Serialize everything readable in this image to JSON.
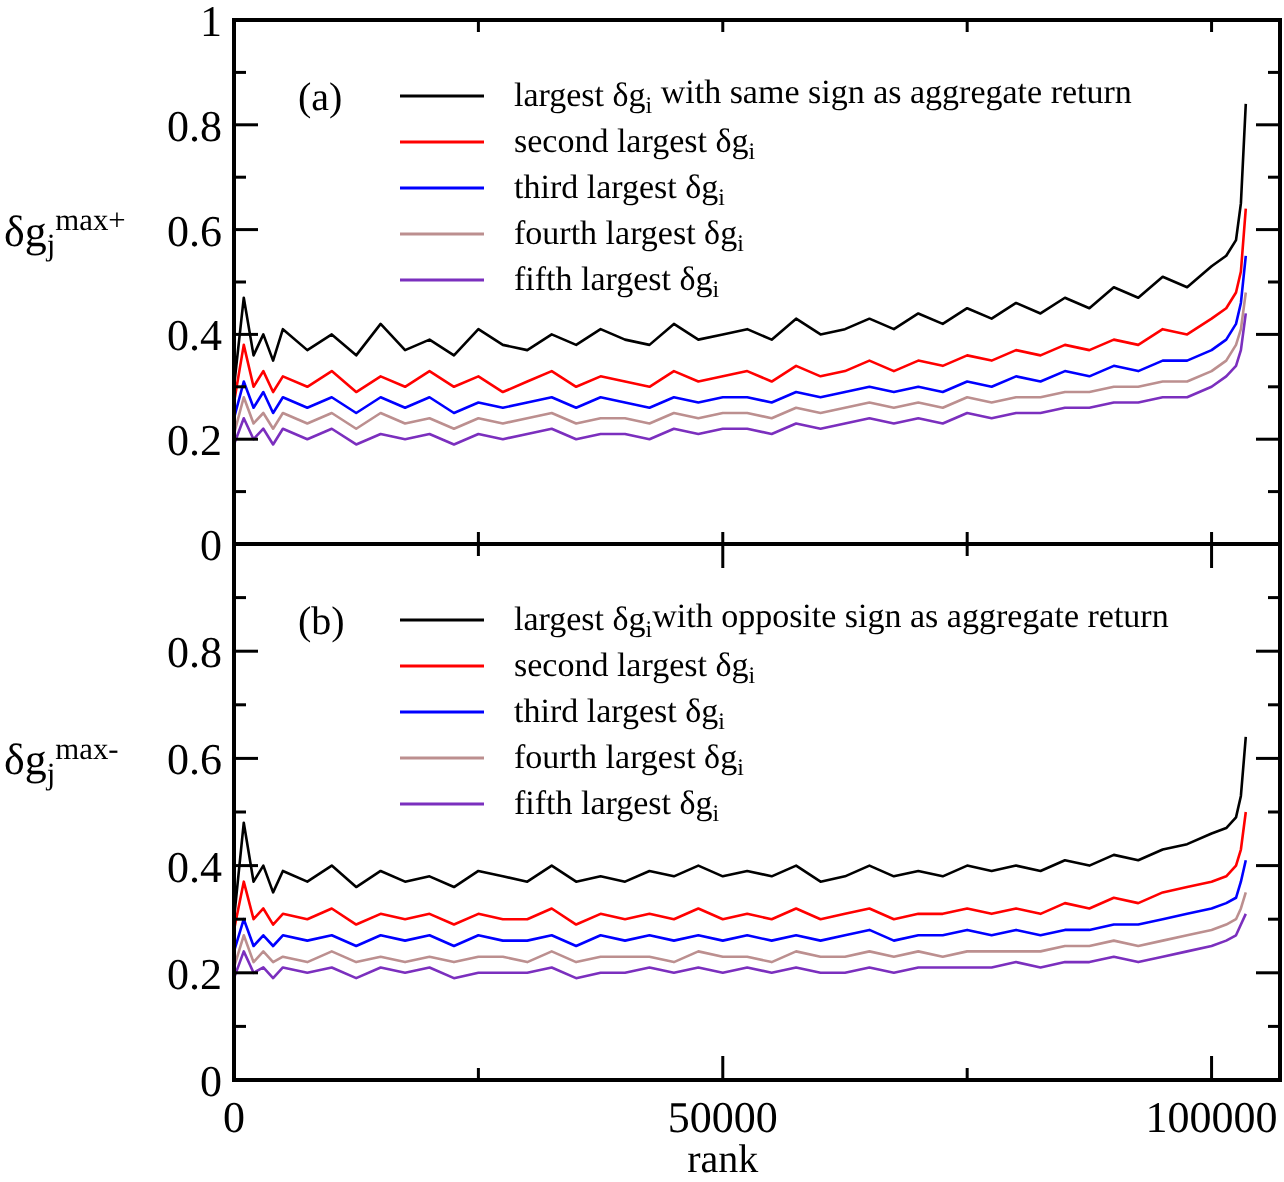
{
  "chart_data": [
    {
      "type": "line",
      "ylabel": "δg$_{j}$$^{max+}$",
      "annotations": [
        "(a)"
      ],
      "legend": "top",
      "tick_labels": "y",
      "xlim": [
        0,
        107000
      ],
      "ylim": [
        0,
        1
      ],
      "xticks": [
        {
          "value": 0,
          "label": null
        },
        {
          "value": 25000,
          "label": null
        },
        {
          "value": 50000,
          "label": null
        },
        {
          "value": 75000,
          "label": null
        },
        {
          "value": 100000,
          "label": null
        }
      ],
      "yticks": [
        0,
        {
          "value": 0.1,
          "label": null
        },
        0.2,
        {
          "value": 0.3,
          "label": null
        },
        0.4,
        {
          "value": 0.5,
          "label": null
        },
        0.6,
        {
          "value": 0.7,
          "label": null
        },
        0.8,
        {
          "value": 0.9,
          "label": null
        },
        1
      ],
      "x": [
        0,
        1000,
        2000,
        3000,
        4000,
        5000,
        7500,
        10000,
        12500,
        15000,
        17500,
        20000,
        22500,
        25000,
        27500,
        30000,
        32500,
        35000,
        37500,
        40000,
        42500,
        45000,
        47500,
        50000,
        52500,
        55000,
        57500,
        60000,
        62500,
        65000,
        67500,
        70000,
        72500,
        75000,
        77500,
        80000,
        82500,
        85000,
        87500,
        90000,
        92500,
        95000,
        97500,
        100000,
        101500,
        102500,
        103000,
        103500
      ],
      "series": [
        {
          "name": "largest δg$_{i}$ with same sign as aggregate return",
          "color": "#000000",
          "values": [
            0.3,
            0.47,
            0.36,
            0.4,
            0.35,
            0.41,
            0.37,
            0.4,
            0.36,
            0.42,
            0.37,
            0.39,
            0.36,
            0.41,
            0.38,
            0.37,
            0.4,
            0.38,
            0.41,
            0.39,
            0.38,
            0.42,
            0.39,
            0.4,
            0.41,
            0.39,
            0.43,
            0.4,
            0.41,
            0.43,
            0.41,
            0.44,
            0.42,
            0.45,
            0.43,
            0.46,
            0.44,
            0.47,
            0.45,
            0.49,
            0.47,
            0.51,
            0.49,
            0.53,
            0.55,
            0.58,
            0.65,
            0.84
          ]
        },
        {
          "name": "second largest δg$_{i}$",
          "color": "#ff0000",
          "values": [
            0.27,
            0.38,
            0.3,
            0.33,
            0.29,
            0.32,
            0.3,
            0.33,
            0.29,
            0.32,
            0.3,
            0.33,
            0.3,
            0.32,
            0.29,
            0.31,
            0.33,
            0.3,
            0.32,
            0.31,
            0.3,
            0.33,
            0.31,
            0.32,
            0.33,
            0.31,
            0.34,
            0.32,
            0.33,
            0.35,
            0.33,
            0.35,
            0.34,
            0.36,
            0.35,
            0.37,
            0.36,
            0.38,
            0.37,
            0.39,
            0.38,
            0.41,
            0.4,
            0.43,
            0.45,
            0.48,
            0.52,
            0.64
          ]
        },
        {
          "name": "third largest δg$_{i}$",
          "color": "#0000ff",
          "values": [
            0.24,
            0.31,
            0.26,
            0.29,
            0.25,
            0.28,
            0.26,
            0.28,
            0.25,
            0.28,
            0.26,
            0.28,
            0.25,
            0.27,
            0.26,
            0.27,
            0.28,
            0.26,
            0.28,
            0.27,
            0.26,
            0.28,
            0.27,
            0.28,
            0.28,
            0.27,
            0.29,
            0.28,
            0.29,
            0.3,
            0.29,
            0.3,
            0.29,
            0.31,
            0.3,
            0.32,
            0.31,
            0.33,
            0.32,
            0.34,
            0.33,
            0.35,
            0.35,
            0.37,
            0.39,
            0.42,
            0.46,
            0.55
          ]
        },
        {
          "name": "fourth largest δg$_{i}$",
          "color": "#bc8f8f",
          "values": [
            0.21,
            0.28,
            0.23,
            0.25,
            0.22,
            0.25,
            0.23,
            0.25,
            0.22,
            0.25,
            0.23,
            0.24,
            0.22,
            0.24,
            0.23,
            0.24,
            0.25,
            0.23,
            0.24,
            0.24,
            0.23,
            0.25,
            0.24,
            0.25,
            0.25,
            0.24,
            0.26,
            0.25,
            0.26,
            0.27,
            0.26,
            0.27,
            0.26,
            0.28,
            0.27,
            0.28,
            0.28,
            0.29,
            0.29,
            0.3,
            0.3,
            0.31,
            0.31,
            0.33,
            0.35,
            0.38,
            0.41,
            0.48
          ]
        },
        {
          "name": "fifth largest δg$_{i}$",
          "color": "#7b2fbe",
          "values": [
            0.19,
            0.24,
            0.2,
            0.22,
            0.19,
            0.22,
            0.2,
            0.22,
            0.19,
            0.21,
            0.2,
            0.21,
            0.19,
            0.21,
            0.2,
            0.21,
            0.22,
            0.2,
            0.21,
            0.21,
            0.2,
            0.22,
            0.21,
            0.22,
            0.22,
            0.21,
            0.23,
            0.22,
            0.23,
            0.24,
            0.23,
            0.24,
            0.23,
            0.25,
            0.24,
            0.25,
            0.25,
            0.26,
            0.26,
            0.27,
            0.27,
            0.28,
            0.28,
            0.3,
            0.32,
            0.34,
            0.37,
            0.44
          ]
        }
      ]
    },
    {
      "type": "line",
      "ylabel": "δg$_{j}$$^{max-}$",
      "xlabel": "rank",
      "annotations": [
        "(b)"
      ],
      "legend": "top",
      "xlim": [
        0,
        107000
      ],
      "ylim": [
        0,
        1
      ],
      "xticks": [
        0,
        {
          "value": 25000,
          "label": null
        },
        50000,
        {
          "value": 75000,
          "label": null
        },
        100000
      ],
      "yticks": [
        0,
        {
          "value": 0.1,
          "label": null
        },
        0.2,
        {
          "value": 0.3,
          "label": null
        },
        0.4,
        {
          "value": 0.5,
          "label": null
        },
        0.6,
        {
          "value": 0.7,
          "label": null
        },
        0.8,
        {
          "value": 0.9,
          "label": null
        },
        {
          "value": 1,
          "label": null
        }
      ],
      "x": [
        0,
        1000,
        2000,
        3000,
        4000,
        5000,
        7500,
        10000,
        12500,
        15000,
        17500,
        20000,
        22500,
        25000,
        27500,
        30000,
        32500,
        35000,
        37500,
        40000,
        42500,
        45000,
        47500,
        50000,
        52500,
        55000,
        57500,
        60000,
        62500,
        65000,
        67500,
        70000,
        72500,
        75000,
        77500,
        80000,
        82500,
        85000,
        87500,
        90000,
        92500,
        95000,
        97500,
        100000,
        101500,
        102500,
        103000,
        103500
      ],
      "series": [
        {
          "name": "largest δg$_{i}$with opposite sign as aggregate return",
          "color": "#000000",
          "values": [
            0.3,
            0.48,
            0.37,
            0.4,
            0.35,
            0.39,
            0.37,
            0.4,
            0.36,
            0.39,
            0.37,
            0.38,
            0.36,
            0.39,
            0.38,
            0.37,
            0.4,
            0.37,
            0.38,
            0.37,
            0.39,
            0.38,
            0.4,
            0.38,
            0.39,
            0.38,
            0.4,
            0.37,
            0.38,
            0.4,
            0.38,
            0.39,
            0.38,
            0.4,
            0.39,
            0.4,
            0.39,
            0.41,
            0.4,
            0.42,
            0.41,
            0.43,
            0.44,
            0.46,
            0.47,
            0.49,
            0.53,
            0.64
          ]
        },
        {
          "name": "second largest δg$_{i}$",
          "color": "#ff0000",
          "values": [
            0.28,
            0.37,
            0.3,
            0.32,
            0.29,
            0.31,
            0.3,
            0.32,
            0.29,
            0.31,
            0.3,
            0.31,
            0.29,
            0.31,
            0.3,
            0.3,
            0.32,
            0.29,
            0.31,
            0.3,
            0.31,
            0.3,
            0.32,
            0.3,
            0.31,
            0.3,
            0.32,
            0.3,
            0.31,
            0.32,
            0.3,
            0.31,
            0.31,
            0.32,
            0.31,
            0.32,
            0.31,
            0.33,
            0.32,
            0.34,
            0.33,
            0.35,
            0.36,
            0.37,
            0.38,
            0.4,
            0.43,
            0.5
          ]
        },
        {
          "name": "third largest δg$_{i}$",
          "color": "#0000ff",
          "values": [
            0.24,
            0.3,
            0.25,
            0.27,
            0.25,
            0.27,
            0.26,
            0.27,
            0.25,
            0.27,
            0.26,
            0.27,
            0.25,
            0.27,
            0.26,
            0.26,
            0.27,
            0.25,
            0.27,
            0.26,
            0.27,
            0.26,
            0.27,
            0.26,
            0.27,
            0.26,
            0.27,
            0.26,
            0.27,
            0.28,
            0.26,
            0.27,
            0.27,
            0.28,
            0.27,
            0.28,
            0.27,
            0.28,
            0.28,
            0.29,
            0.29,
            0.3,
            0.31,
            0.32,
            0.33,
            0.34,
            0.37,
            0.41
          ]
        },
        {
          "name": "fourth largest δg$_{i}$",
          "color": "#bc8f8f",
          "values": [
            0.21,
            0.27,
            0.22,
            0.24,
            0.22,
            0.23,
            0.22,
            0.24,
            0.22,
            0.23,
            0.22,
            0.23,
            0.22,
            0.23,
            0.23,
            0.22,
            0.24,
            0.22,
            0.23,
            0.23,
            0.23,
            0.22,
            0.24,
            0.23,
            0.23,
            0.22,
            0.24,
            0.23,
            0.23,
            0.24,
            0.23,
            0.24,
            0.23,
            0.24,
            0.24,
            0.24,
            0.24,
            0.25,
            0.25,
            0.26,
            0.25,
            0.26,
            0.27,
            0.28,
            0.29,
            0.3,
            0.32,
            0.35
          ]
        },
        {
          "name": "fifth largest δg$_{i}$",
          "color": "#7b2fbe",
          "values": [
            0.19,
            0.24,
            0.2,
            0.21,
            0.19,
            0.21,
            0.2,
            0.21,
            0.19,
            0.21,
            0.2,
            0.21,
            0.19,
            0.2,
            0.2,
            0.2,
            0.21,
            0.19,
            0.2,
            0.2,
            0.21,
            0.2,
            0.21,
            0.2,
            0.21,
            0.2,
            0.21,
            0.2,
            0.2,
            0.21,
            0.2,
            0.21,
            0.21,
            0.21,
            0.21,
            0.22,
            0.21,
            0.22,
            0.22,
            0.23,
            0.22,
            0.23,
            0.24,
            0.25,
            0.26,
            0.27,
            0.29,
            0.31
          ]
        }
      ]
    }
  ]
}
